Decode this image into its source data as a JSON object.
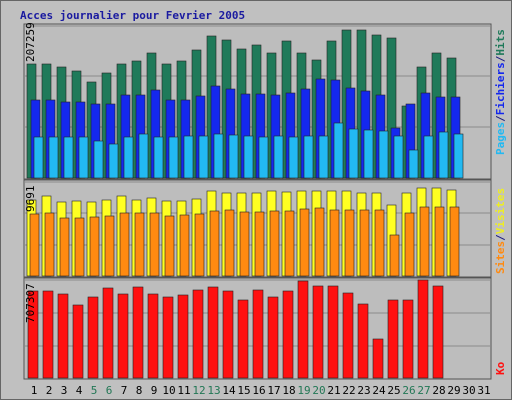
{
  "chart_data": [
    {
      "type": "bar",
      "title": "Acces journalier pour Fevrier 2005",
      "ytick": "207259",
      "legend": [
        "Pages",
        "/",
        "Fichiers",
        "/",
        "Hits"
      ],
      "categories": [
        "1",
        "2",
        "3",
        "4",
        "5",
        "6",
        "7",
        "8",
        "9",
        "10",
        "11",
        "12",
        "13",
        "14",
        "15",
        "16",
        "17",
        "18",
        "19",
        "20",
        "21",
        "22",
        "23",
        "24",
        "25",
        "26",
        "27",
        "28",
        "29",
        "30",
        "31"
      ],
      "series": [
        {
          "name": "Hits",
          "values": [
            155000,
            155000,
            150000,
            145000,
            130000,
            142000,
            155000,
            158000,
            170000,
            154000,
            159000,
            174000,
            192000,
            187000,
            175000,
            180000,
            169000,
            185000,
            170000,
            160000,
            185000,
            200000,
            200000,
            194000,
            190000,
            98000,
            150000,
            170000,
            163000,
            0,
            0
          ]
        },
        {
          "name": "Fichiers",
          "values": [
            105000,
            105000,
            103000,
            103000,
            100000,
            100000,
            112000,
            113000,
            119000,
            106000,
            105000,
            111000,
            124000,
            121000,
            114000,
            114000,
            113000,
            115000,
            120000,
            134000,
            133000,
            122000,
            118000,
            113000,
            68000,
            100000,
            115000,
            110000,
            110000,
            0,
            0
          ]
        },
        {
          "name": "Pages",
          "values": [
            55000,
            55000,
            55000,
            55000,
            50000,
            46000,
            55000,
            60000,
            56000,
            55000,
            57000,
            57000,
            60000,
            58000,
            57000,
            56000,
            57000,
            55000,
            57000,
            57000,
            75000,
            67000,
            65000,
            64000,
            57000,
            38000,
            57000,
            62000,
            60000,
            0,
            0
          ]
        }
      ],
      "colors": {
        "Hits": "#1f7a5a",
        "Fichiers": "#1428ee",
        "Pages": "#22b9f2"
      },
      "legend_colors": {
        "Pages": "#22b9f2",
        "Fichiers": "#1428ee",
        "Hits": "#1f7a5a",
        "slash": "#1a1a80"
      }
    },
    {
      "type": "bar",
      "ytick": "9691",
      "legend": [
        "Sites",
        "/",
        "Visites"
      ],
      "categories": [
        "1",
        "2",
        "3",
        "4",
        "5",
        "6",
        "7",
        "8",
        "9",
        "10",
        "11",
        "12",
        "13",
        "14",
        "15",
        "16",
        "17",
        "18",
        "19",
        "20",
        "21",
        "22",
        "23",
        "24",
        "25",
        "26",
        "27",
        "28",
        "29",
        "30",
        "31"
      ],
      "series": [
        {
          "name": "Visites",
          "values": [
            7800,
            8200,
            7500,
            7600,
            7500,
            7800,
            8200,
            7800,
            8000,
            7600,
            7600,
            7900,
            8700,
            8500,
            8500,
            8500,
            8700,
            8600,
            8700,
            8700,
            8700,
            8700,
            8500,
            8500,
            7200,
            8500,
            9000,
            9000,
            8800,
            0,
            0
          ]
        },
        {
          "name": "Sites",
          "values": [
            6300,
            6400,
            5900,
            5900,
            6000,
            6100,
            6400,
            6400,
            6400,
            6100,
            6200,
            6300,
            6600,
            6700,
            6500,
            6500,
            6600,
            6600,
            6800,
            6900,
            6700,
            6700,
            6700,
            6700,
            4200,
            6400,
            7000,
            7000,
            7000,
            0,
            0
          ]
        }
      ],
      "colors": {
        "Visites": "#ffff22",
        "Sites": "#ff8a10"
      },
      "legend_colors": {
        "Sites": "#ff8a10",
        "Visites": "#eeee22",
        "slash": "#1a1a80"
      }
    },
    {
      "type": "bar",
      "ytick": "707307",
      "legend": [
        "Ko"
      ],
      "categories": [
        "1",
        "2",
        "3",
        "4",
        "5",
        "6",
        "7",
        "8",
        "9",
        "10",
        "11",
        "12",
        "13",
        "14",
        "15",
        "16",
        "17",
        "18",
        "19",
        "20",
        "21",
        "22",
        "23",
        "24",
        "25",
        "26",
        "27",
        "28",
        "29",
        "30",
        "31"
      ],
      "series": [
        {
          "name": "Ko",
          "values": [
            620000,
            620000,
            600000,
            520000,
            580000,
            640000,
            600000,
            650000,
            600000,
            580000,
            590000,
            630000,
            650000,
            620000,
            560000,
            630000,
            580000,
            620000,
            690000,
            660000,
            660000,
            610000,
            530000,
            280000,
            560000,
            560000,
            700000,
            660000,
            0,
            0,
            0
          ]
        }
      ],
      "colors": {
        "Ko": "#ff1010"
      },
      "legend_colors": {
        "Ko": "#ff1010"
      }
    }
  ],
  "x_axis": {
    "labels": [
      "1",
      "2",
      "3",
      "4",
      "5",
      "6",
      "7",
      "8",
      "9",
      "10",
      "11",
      "12",
      "13",
      "14",
      "15",
      "16",
      "17",
      "18",
      "19",
      "20",
      "21",
      "22",
      "23",
      "24",
      "25",
      "26",
      "27",
      "28",
      "29",
      "30",
      "31"
    ],
    "weekend_days": [
      "5",
      "6",
      "12",
      "13",
      "19",
      "20",
      "26",
      "27"
    ],
    "weekday_color": "#000000",
    "weekend_color": "#227755"
  }
}
